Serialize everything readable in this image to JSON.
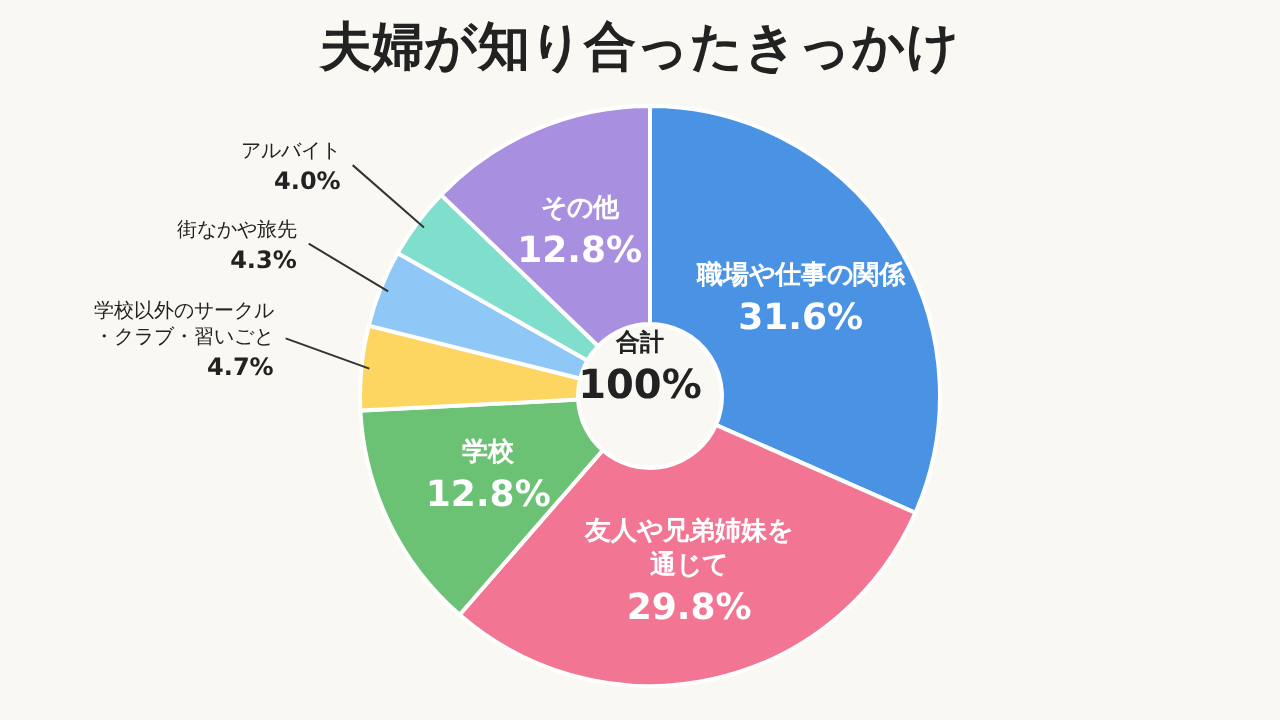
{
  "chart_data": {
    "type": "donut",
    "title": "夫婦が知り合ったきっかけ",
    "categories": [
      "職場や仕事の関係",
      "友人や兄弟姉妹を通じて",
      "学校",
      "学校以外のサークル・クラブ・習いごと",
      "街なかや旅先",
      "アルバイト",
      "その他"
    ],
    "values": [
      31.6,
      29.8,
      12.8,
      4.7,
      4.3,
      4.0,
      12.8
    ],
    "value_labels": [
      "31.6%",
      "29.8%",
      "12.8%",
      "4.7%",
      "4.3%",
      "4.0%",
      "12.8%"
    ],
    "colors": [
      "#4a93e4",
      "#f27594",
      "#6cc274",
      "#fdd561",
      "#8fc7f7",
      "#7fdfcc",
      "#a98fe0"
    ],
    "annotations": [
      "合計",
      "100%"
    ],
    "legend": false
  }
}
